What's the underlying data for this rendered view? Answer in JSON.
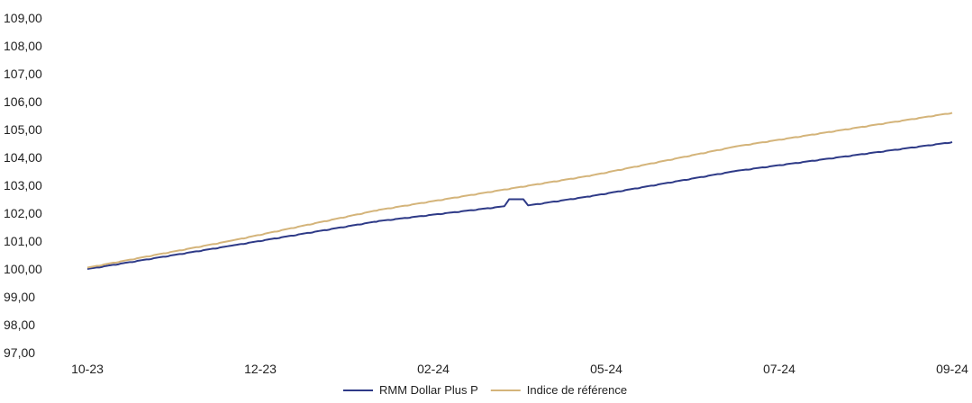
{
  "chart_data": {
    "type": "line",
    "title": "",
    "xlabel": "",
    "ylabel": "",
    "ylim": [
      97,
      109
    ],
    "y_ticks": [
      "97,00",
      "98,00",
      "99,00",
      "100,00",
      "101,00",
      "102,00",
      "103,00",
      "104,00",
      "105,00",
      "106,00",
      "107,00",
      "108,00",
      "109,00"
    ],
    "x_ticks": [
      "10-23",
      "12-23",
      "02-24",
      "05-24",
      "07-24",
      "09-24"
    ],
    "x_range": [
      "2023-10-01",
      "2024-09-30"
    ],
    "grid": false,
    "legend_position": "bottom",
    "series": [
      {
        "name": "RMM Dollar Plus P",
        "color": "#2e3a87",
        "points": [
          [
            "2023-10-01",
            100.0
          ],
          [
            "2023-12-01",
            100.84
          ],
          [
            "2024-02-01",
            101.72
          ],
          [
            "2024-03-25",
            102.25
          ],
          [
            "2024-03-27",
            102.5
          ],
          [
            "2024-04-02",
            102.5
          ],
          [
            "2024-04-04",
            102.28
          ],
          [
            "2024-05-01",
            102.62
          ],
          [
            "2024-07-01",
            103.52
          ],
          [
            "2024-09-30",
            104.55
          ]
        ]
      },
      {
        "name": "Indice de référence",
        "color": "#d4b47a",
        "points": [
          [
            "2023-10-01",
            100.05
          ],
          [
            "2023-12-01",
            101.02
          ],
          [
            "2024-02-01",
            102.12
          ],
          [
            "2024-05-01",
            103.36
          ],
          [
            "2024-07-01",
            104.4
          ],
          [
            "2024-09-30",
            105.6
          ]
        ]
      }
    ]
  }
}
